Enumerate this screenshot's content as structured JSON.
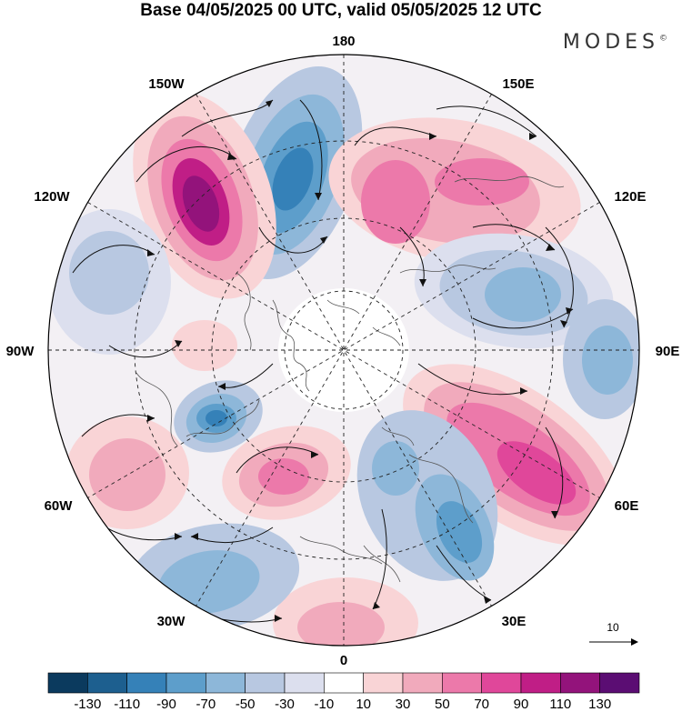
{
  "title": "Base 04/05/2025 00 UTC, valid 05/05/2025 12 UTC",
  "brand": "MODES",
  "brand_mark": "©",
  "longitude_labels": {
    "lon_180": "180",
    "lon_150e": "150E",
    "lon_120e": "120E",
    "lon_90e": "90E",
    "lon_60e": "60E",
    "lon_30e": "30E",
    "lon_0": "0",
    "lon_30w": "30W",
    "lon_60w": "60W",
    "lon_90w": "90W",
    "lon_120w": "120W",
    "lon_150w": "150W"
  },
  "reference_vector_label": "10",
  "colorbar": {
    "colors": [
      "#0b3a5e",
      "#1d5f8f",
      "#3581b8",
      "#5d9ecb",
      "#8db7d9",
      "#b8c8e1",
      "#dcdfee",
      "#ffffff",
      "#f9d4d6",
      "#f1aabc",
      "#ec79aa",
      "#e0479a",
      "#c01e86",
      "#93137b",
      "#5b0d73"
    ],
    "tick_labels": [
      "-130",
      "-110",
      "-90",
      "-70",
      "-50",
      "-30",
      "-10",
      "10",
      "30",
      "50",
      "70",
      "90",
      "110",
      "130"
    ]
  },
  "anomalies": [
    {
      "name": "low-ne-pacific",
      "sign": "neg",
      "level": 4
    },
    {
      "name": "high-bering",
      "sign": "pos",
      "level": 5
    },
    {
      "name": "high-east-siberia",
      "sign": "pos",
      "level": 3
    },
    {
      "name": "low-central-siberia",
      "sign": "neg",
      "level": 2
    },
    {
      "name": "low-west-siberia",
      "sign": "neg",
      "level": 2
    },
    {
      "name": "high-central-asia",
      "sign": "pos",
      "level": 4
    },
    {
      "name": "low-eastern-europe",
      "sign": "neg",
      "level": 3
    },
    {
      "name": "low-scandinavia",
      "sign": "neg",
      "level": 2
    },
    {
      "name": "high-west-africa",
      "sign": "pos",
      "level": 1
    },
    {
      "name": "low-azores",
      "sign": "neg",
      "level": 2
    },
    {
      "name": "high-atlantic",
      "sign": "pos",
      "level": 3
    },
    {
      "name": "high-us-east",
      "sign": "pos",
      "level": 2
    },
    {
      "name": "low-hudson-bay",
      "sign": "neg",
      "level": 4
    },
    {
      "name": "high-canada",
      "sign": "pos",
      "level": 1
    },
    {
      "name": "low-pacific-nw",
      "sign": "neg",
      "level": 1
    }
  ]
}
